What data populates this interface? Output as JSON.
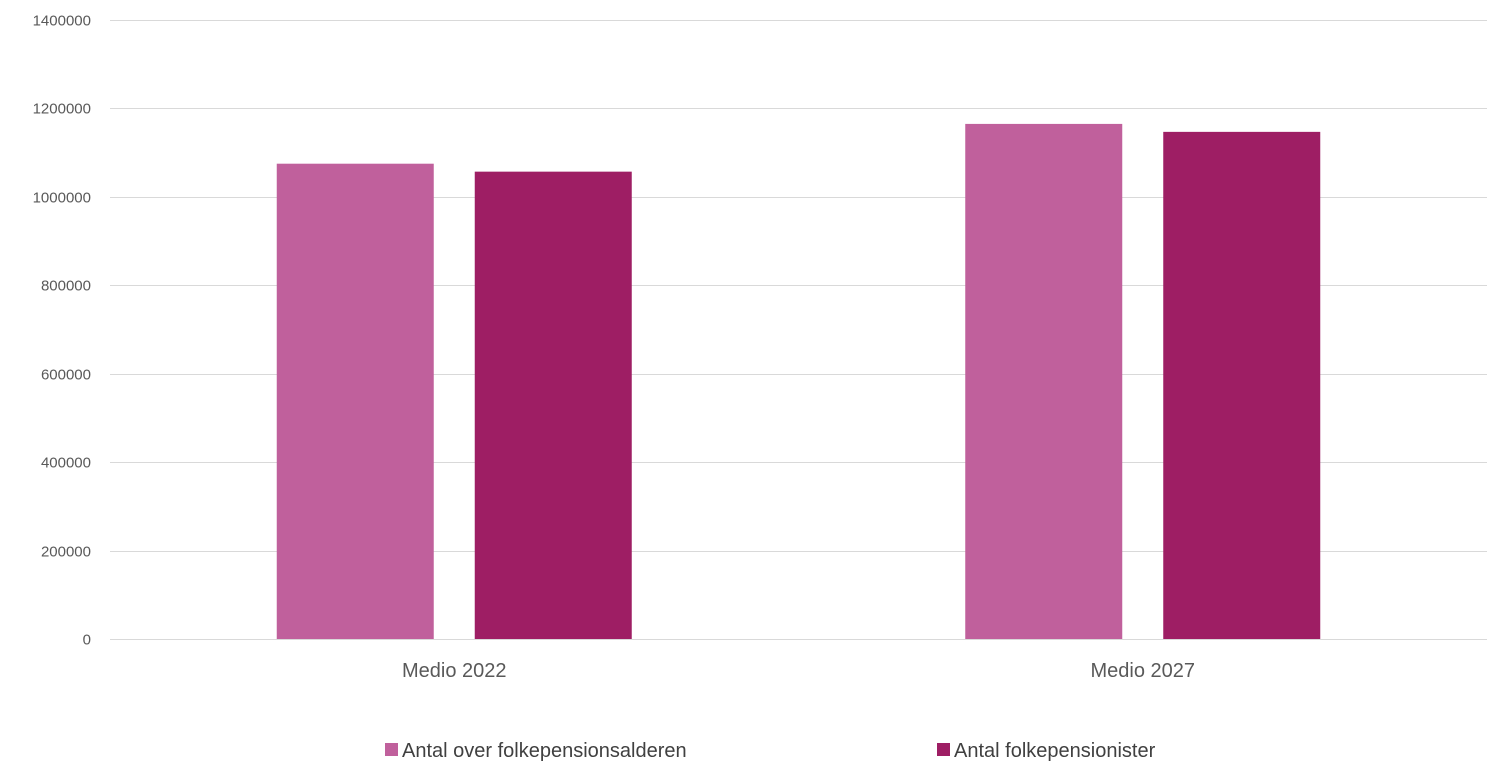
{
  "chart_data": {
    "type": "bar",
    "title": "",
    "xlabel": "",
    "ylabel": "",
    "categories": [
      "Medio 2022",
      "Medio 2027"
    ],
    "series": [
      {
        "name": "Antal over folkepensionsalderen",
        "values": [
          1075000,
          1165000
        ],
        "color": "#c0609c"
      },
      {
        "name": "Antal folkepensionister",
        "values": [
          1057000,
          1147000
        ],
        "color": "#9e1e64"
      }
    ],
    "ylim": [
      0,
      1400000
    ],
    "yticks": [
      0,
      200000,
      400000,
      600000,
      800000,
      1000000,
      1200000,
      1400000
    ],
    "grid": true,
    "legend_position": "bottom"
  }
}
